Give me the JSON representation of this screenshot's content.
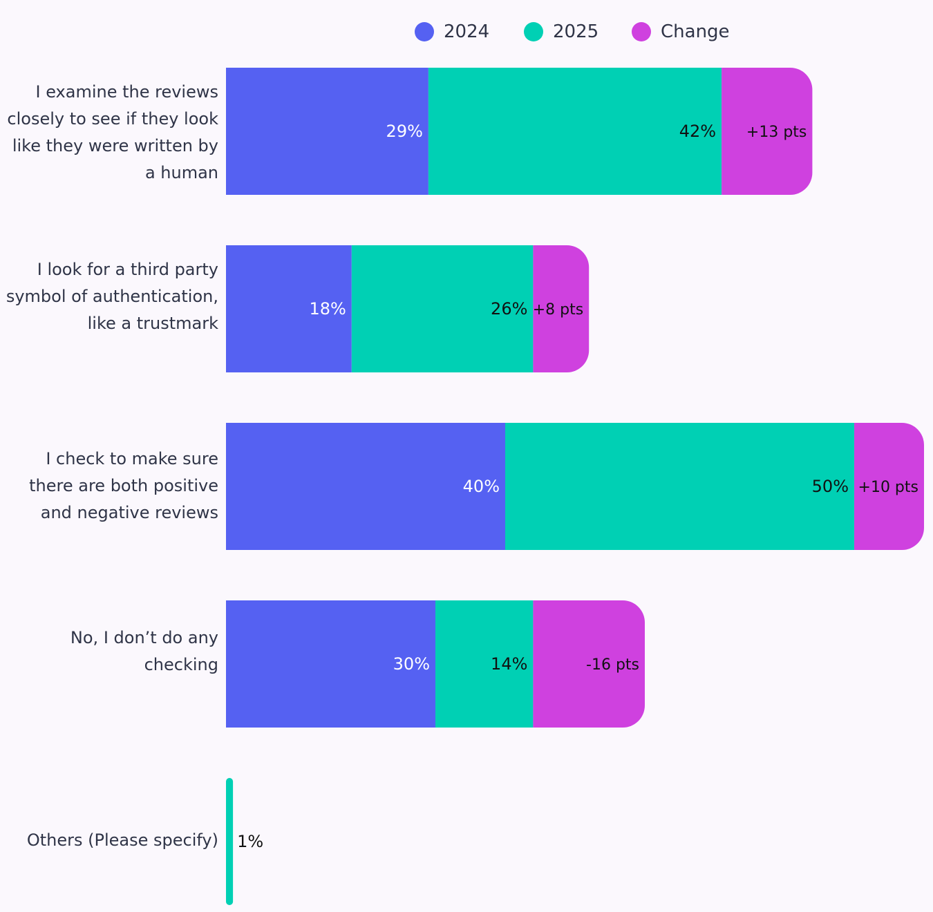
{
  "legend": [
    {
      "label": "2024",
      "color": "#5561f2"
    },
    {
      "label": "2025",
      "color": "#00d0b4"
    },
    {
      "label": "Change",
      "color": "#cf41df"
    }
  ],
  "chart_data": {
    "type": "bar",
    "orientation": "horizontal",
    "stacked": true,
    "categories": [
      "I examine the reviews closely to see if they look like they were written by a human",
      "I look for a third party symbol of authentication, like a trustmark",
      "I check to make sure there are both positive and negative reviews",
      "No, I don’t do any checking",
      "Others (Please specify)"
    ],
    "series": [
      {
        "name": "2024",
        "color": "#5561f2",
        "values": [
          29,
          18,
          40,
          30,
          0
        ],
        "labels": [
          "29%",
          "18%",
          "40%",
          "30%",
          ""
        ]
      },
      {
        "name": "2025",
        "color": "#00d0b4",
        "values": [
          42,
          26,
          50,
          14,
          1
        ],
        "labels": [
          "42%",
          "26%",
          "50%",
          "14%",
          "1%"
        ]
      },
      {
        "name": "Change",
        "color": "#cf41df",
        "values": [
          13,
          8,
          10,
          -16,
          0
        ],
        "labels": [
          "+13 pts",
          "+8 pts",
          "+10 pts",
          "-16 pts",
          ""
        ]
      }
    ],
    "legend_position": "top",
    "grid": false
  }
}
